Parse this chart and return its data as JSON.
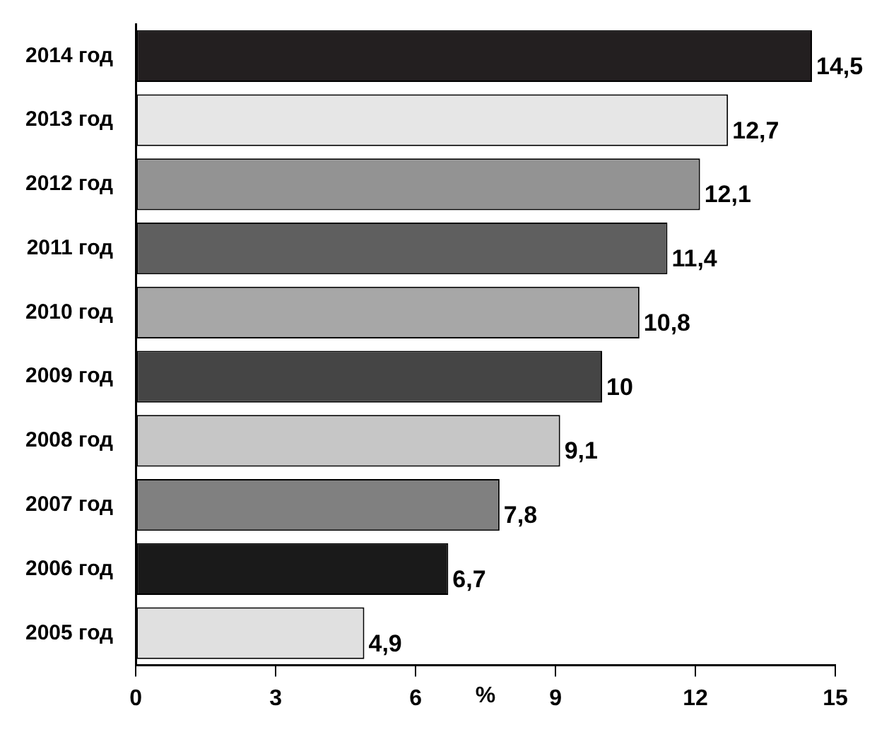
{
  "chart_data": {
    "type": "bar",
    "orientation": "horizontal",
    "xlabel": "%",
    "categories": [
      "2014 год",
      "2013 год",
      "2012 год",
      "2011 год",
      "2010 год",
      "2009 год",
      "2008 год",
      "2007 год",
      "2006 год",
      "2005 год"
    ],
    "values": [
      14.5,
      12.7,
      12.1,
      11.4,
      10.8,
      10,
      9.1,
      7.8,
      6.7,
      4.9
    ],
    "value_labels": [
      "14,5",
      "12,7",
      "12,1",
      "11,4",
      "10,8",
      "10",
      "9,1",
      "7,8",
      "6,7",
      "4,9"
    ],
    "colors": [
      "#231f20",
      "#e6e6e6",
      "#939393",
      "#5f5f5f",
      "#a7a7a7",
      "#454545",
      "#c6c6c6",
      "#808080",
      "#1a1a1a",
      "#e0e0e0"
    ],
    "xlim": [
      0,
      15
    ],
    "xticks": [
      0,
      3,
      6,
      9,
      12,
      15
    ],
    "grid": false,
    "legend": false
  }
}
